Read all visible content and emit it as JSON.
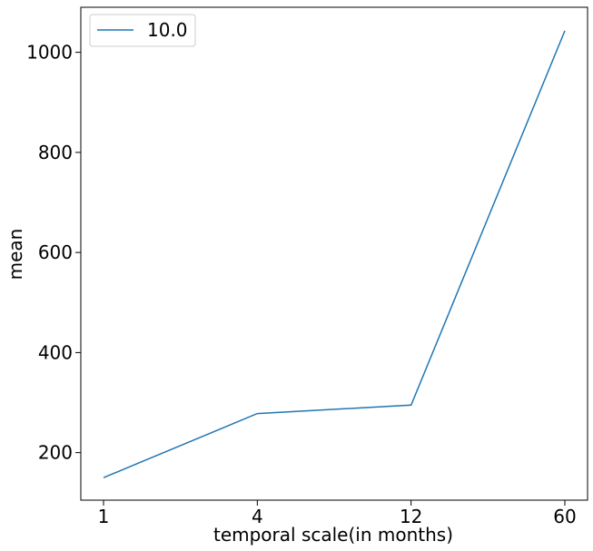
{
  "chart_data": {
    "type": "line",
    "title": "",
    "xlabel": "temporal scale(in months)",
    "ylabel": "mean",
    "categories": [
      "1",
      "4",
      "12",
      "60"
    ],
    "series": [
      {
        "name": "10.0",
        "color": "#1f77b4",
        "values": [
          150,
          278,
          295,
          1043
        ]
      }
    ],
    "yticks": [
      200,
      400,
      600,
      800,
      1000
    ],
    "ylim": [
      105,
      1090
    ],
    "grid": false,
    "legend_position": "top-left"
  }
}
